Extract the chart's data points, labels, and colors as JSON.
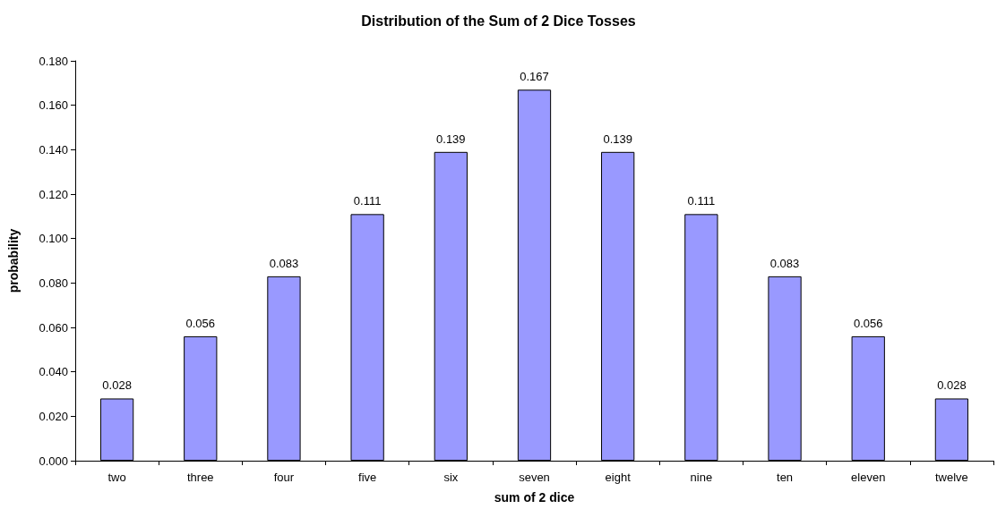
{
  "chart_data": {
    "type": "bar",
    "title": "Distribution of the Sum of 2 Dice Tosses",
    "xlabel": "sum of 2 dice",
    "ylabel": "probability",
    "categories": [
      "two",
      "three",
      "four",
      "five",
      "six",
      "seven",
      "eight",
      "nine",
      "ten",
      "eleven",
      "twelve"
    ],
    "values": [
      0.028,
      0.056,
      0.083,
      0.111,
      0.139,
      0.167,
      0.139,
      0.111,
      0.083,
      0.056,
      0.028
    ],
    "color": "#9999ff",
    "ylim": [
      0,
      0.18
    ],
    "yticks": [
      {
        "value": 0,
        "label": "0.000"
      },
      {
        "value": 0.02,
        "label": "0.020"
      },
      {
        "value": 0.04,
        "label": "0.040"
      },
      {
        "value": 0.06,
        "label": "0.060"
      },
      {
        "value": 0.08,
        "label": "0.080"
      },
      {
        "value": 0.1,
        "label": "0.100"
      },
      {
        "value": 0.12,
        "label": "0.120"
      },
      {
        "value": 0.14,
        "label": "0.140"
      },
      {
        "value": 0.16,
        "label": "0.160"
      },
      {
        "value": 0.18,
        "label": "0.180"
      }
    ],
    "grid": false,
    "legend": false,
    "data_labels": true
  }
}
